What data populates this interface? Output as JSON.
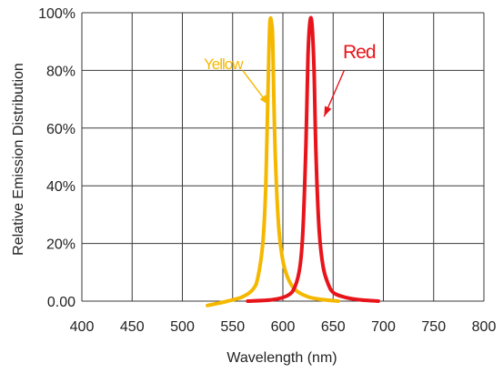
{
  "chart_data": {
    "type": "line",
    "xlabel": "Wavelength (nm)",
    "ylabel": "Relative Emission Distribution",
    "xlim": [
      400,
      800
    ],
    "ylim": [
      0,
      100
    ],
    "x_ticks": [
      "400",
      "450",
      "500",
      "550",
      "600",
      "650",
      "700",
      "750",
      "800"
    ],
    "y_ticks": [
      "0.00",
      "20%",
      "40%",
      "60%",
      "80%",
      "100%"
    ],
    "grid": true,
    "legend": "none",
    "series": [
      {
        "name": "Yellow",
        "color": "#F5B800",
        "x": [
          525,
          545,
          560,
          570,
          575,
          580,
          583,
          585,
          587,
          589,
          590,
          591,
          593,
          596,
          600,
          605,
          612,
          625,
          640,
          655
        ],
        "y": [
          -1.5,
          0,
          1.5,
          4,
          8,
          20,
          40,
          70,
          96,
          96,
          90,
          70,
          45,
          25,
          14,
          8,
          4,
          1.5,
          0.5,
          0
        ]
      },
      {
        "name": "Red",
        "color": "#E8141B",
        "x": [
          565,
          590,
          605,
          612,
          617,
          620,
          623,
          625,
          627,
          629,
          631,
          633,
          636,
          640,
          645,
          650,
          660,
          675,
          695
        ],
        "y": [
          0,
          0.5,
          2,
          5,
          12,
          25,
          55,
          85,
          97,
          96,
          80,
          50,
          25,
          12,
          6,
          3,
          1.5,
          0.5,
          0
        ]
      }
    ],
    "annotations": [
      {
        "text": "Yellow",
        "series": 0,
        "arrow_from": [
          560,
          80
        ],
        "arrow_to": [
          586,
          68
        ]
      },
      {
        "text": "Red",
        "series": 1,
        "arrow_from": [
          661,
          80
        ],
        "arrow_to": [
          641,
          64
        ]
      }
    ]
  }
}
